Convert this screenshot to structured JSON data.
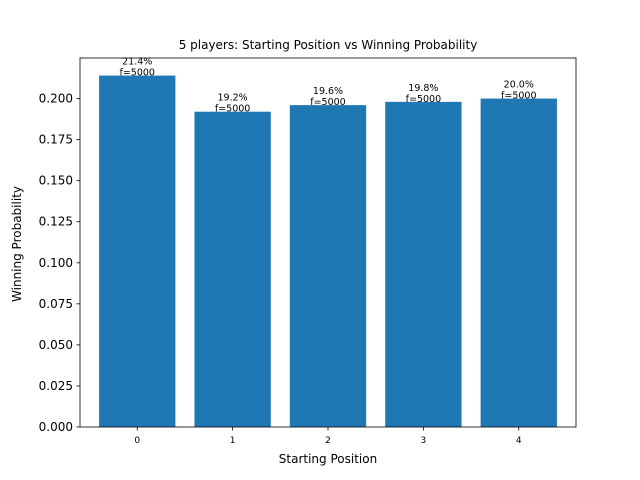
{
  "chart_data": {
    "type": "bar",
    "title": "5 players: Starting Position vs Winning Probability",
    "xlabel": "Starting Position",
    "ylabel": "Winning Probability",
    "categories": [
      "0",
      "1",
      "2",
      "3",
      "4"
    ],
    "values": [
      0.214,
      0.192,
      0.196,
      0.198,
      0.2
    ],
    "data_labels": [
      [
        "21.4%",
        "f=5000"
      ],
      [
        "19.2%",
        "f=5000"
      ],
      [
        "19.6%",
        "f=5000"
      ],
      [
        "19.8%",
        "f=5000"
      ],
      [
        "20.0%",
        "f=5000"
      ]
    ],
    "ylim": [
      0,
      0.2247
    ],
    "yticks": [
      0.0,
      0.025,
      0.05,
      0.075,
      0.1,
      0.125,
      0.15,
      0.175,
      0.2
    ],
    "ytick_labels": [
      "0.000",
      "0.025",
      "0.050",
      "0.075",
      "0.100",
      "0.125",
      "0.150",
      "0.175",
      "0.200"
    ],
    "grid": false,
    "bar_color": "#1f77b4"
  }
}
